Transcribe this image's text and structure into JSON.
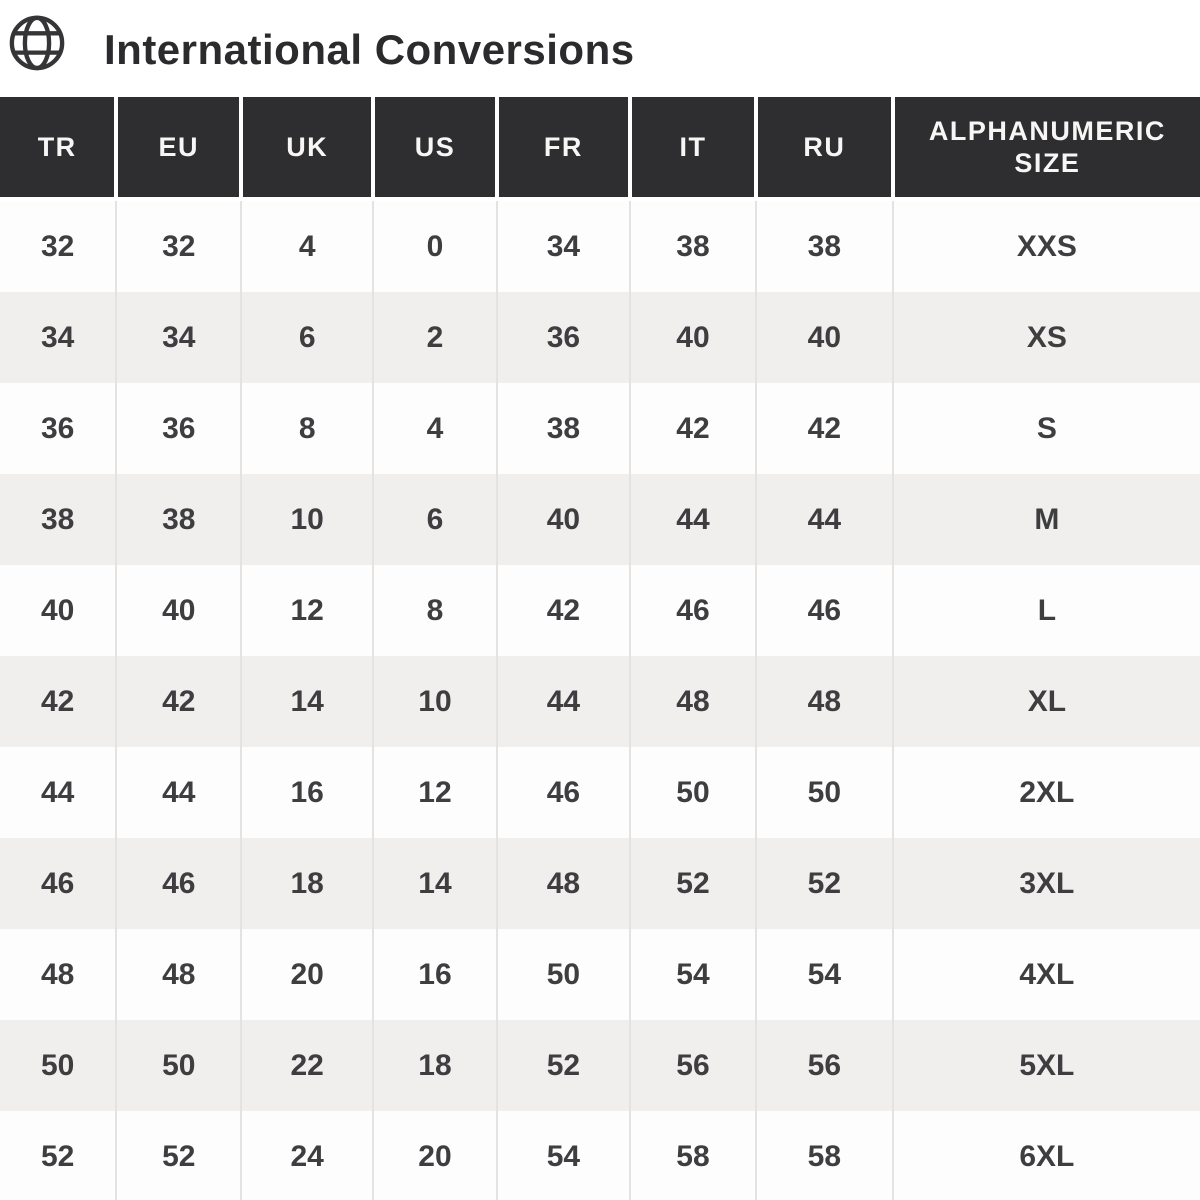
{
  "header": {
    "title": "International Conversions",
    "icon": "globe-icon"
  },
  "table": {
    "columns": [
      "TR",
      "EU",
      "UK",
      "US",
      "FR",
      "IT",
      "RU",
      "ALPHANUMERIC SIZE"
    ],
    "rows": [
      [
        "32",
        "32",
        "4",
        "0",
        "34",
        "38",
        "38",
        "XXS"
      ],
      [
        "34",
        "34",
        "6",
        "2",
        "36",
        "40",
        "40",
        "XS"
      ],
      [
        "36",
        "36",
        "8",
        "4",
        "38",
        "42",
        "42",
        "S"
      ],
      [
        "38",
        "38",
        "10",
        "6",
        "40",
        "44",
        "44",
        "M"
      ],
      [
        "40",
        "40",
        "12",
        "8",
        "42",
        "46",
        "46",
        "L"
      ],
      [
        "42",
        "42",
        "14",
        "10",
        "44",
        "48",
        "48",
        "XL"
      ],
      [
        "44",
        "44",
        "16",
        "12",
        "46",
        "50",
        "50",
        "2XL"
      ],
      [
        "46",
        "46",
        "18",
        "14",
        "48",
        "52",
        "52",
        "3XL"
      ],
      [
        "48",
        "48",
        "20",
        "16",
        "50",
        "54",
        "54",
        "4XL"
      ],
      [
        "50",
        "50",
        "22",
        "18",
        "52",
        "56",
        "56",
        "5XL"
      ],
      [
        "52",
        "52",
        "24",
        "20",
        "54",
        "58",
        "58",
        "6XL"
      ]
    ]
  },
  "colors": {
    "header_bg": "#2e2e30",
    "header_text": "#f7f6f5",
    "body_text": "#3e3d40",
    "row_stripe": "#f0efee",
    "row_plain": "#fdfdfd",
    "divider": "#e4e3e2",
    "title_text": "#2b2b2d"
  }
}
